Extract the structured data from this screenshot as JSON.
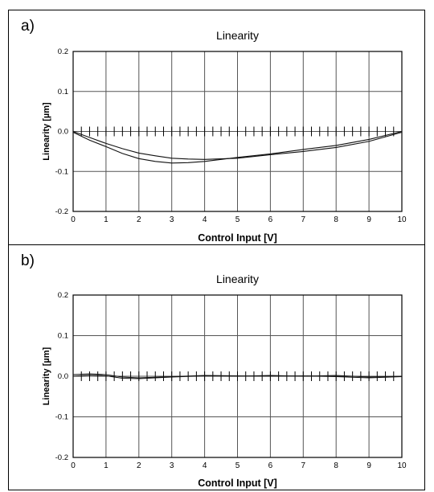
{
  "panels": [
    {
      "letter": "a)"
    },
    {
      "letter": "b)"
    }
  ],
  "chart_data": [
    {
      "type": "line",
      "title": "Linearity",
      "xlabel": "Control Input [V]",
      "ylabel": "Linearity [µm]",
      "xlim": [
        0,
        10
      ],
      "ylim": [
        -0.2,
        0.2
      ],
      "x_ticks": [
        "0",
        "1",
        "2",
        "3",
        "4",
        "5",
        "6",
        "7",
        "8",
        "9",
        "10"
      ],
      "y_ticks": [
        "0.2",
        "0.1",
        "0.0",
        "-0.1",
        "-0.2"
      ],
      "grid": true,
      "data_tick_spacing": 0.25,
      "series": [
        {
          "x": [
            0,
            0.5,
            1,
            1.5,
            2,
            2.5,
            3,
            3.5,
            4,
            5,
            6,
            7,
            8,
            9,
            10
          ],
          "y": [
            -0.002,
            -0.022,
            -0.038,
            -0.055,
            -0.068,
            -0.075,
            -0.079,
            -0.078,
            -0.075,
            -0.065,
            -0.056,
            -0.045,
            -0.035,
            -0.02,
            0
          ]
        },
        {
          "x": [
            0,
            0.5,
            1,
            1.5,
            2,
            2.5,
            3,
            3.5,
            4,
            5,
            6,
            7,
            8,
            9,
            10
          ],
          "y": [
            0,
            -0.015,
            -0.03,
            -0.043,
            -0.054,
            -0.061,
            -0.067,
            -0.069,
            -0.07,
            -0.067,
            -0.058,
            -0.05,
            -0.04,
            -0.025,
            -0.002
          ]
        }
      ]
    },
    {
      "type": "line",
      "title": "Linearity",
      "xlabel": "Control Input [V]",
      "ylabel": "Linearity [µm]",
      "xlim": [
        0,
        10
      ],
      "ylim": [
        -0.2,
        0.2
      ],
      "x_ticks": [
        "0",
        "1",
        "2",
        "3",
        "4",
        "5",
        "6",
        "7",
        "8",
        "9",
        "10"
      ],
      "y_ticks": [
        "0.2",
        "0.1",
        "0.0",
        "-0.1",
        "-0.2"
      ],
      "grid": true,
      "data_tick_spacing": 0.25,
      "series": [
        {
          "x": [
            0,
            0.5,
            1,
            1.5,
            2,
            3,
            4,
            5,
            6,
            7,
            8,
            9,
            10
          ],
          "y": [
            0.004,
            0.006,
            0.004,
            -0.002,
            -0.004,
            -0.001,
            0.002,
            0.001,
            0,
            0.001,
            -0.001,
            -0.004,
            -0.001
          ]
        },
        {
          "x": [
            0,
            0.5,
            1,
            1.5,
            2,
            3,
            4,
            5,
            6,
            7,
            8,
            9,
            10
          ],
          "y": [
            0,
            0.003,
            0.001,
            -0.005,
            -0.006,
            -0.002,
            0.001,
            0,
            0.002,
            0,
            0.002,
            -0.002,
            0
          ]
        }
      ]
    }
  ]
}
